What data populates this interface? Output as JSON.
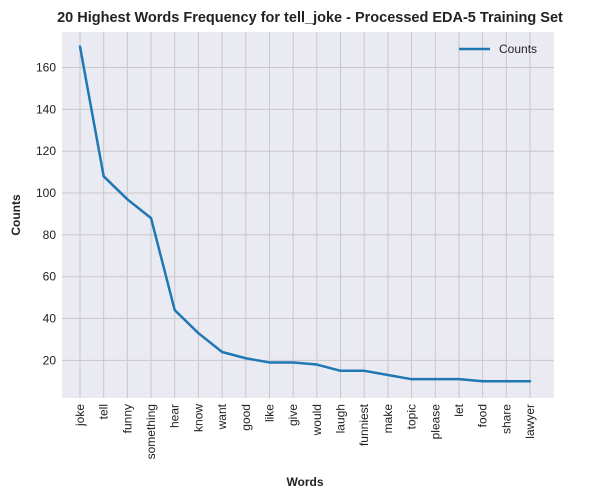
{
  "chart_data": {
    "type": "line",
    "title": "20 Highest Words Frequency for tell_joke - Processed EDA-5 Training Set",
    "xlabel": "Words",
    "ylabel": "Counts",
    "categories": [
      "joke",
      "tell",
      "funny",
      "something",
      "hear",
      "know",
      "want",
      "good",
      "like",
      "give",
      "would",
      "laugh",
      "funniest",
      "make",
      "topic",
      "please",
      "let",
      "food",
      "share",
      "lawyer"
    ],
    "series": [
      {
        "name": "Counts",
        "color": "#1f77b4",
        "values": [
          170,
          108,
          97,
          88,
          44,
          33,
          24,
          21,
          19,
          19,
          18,
          15,
          15,
          13,
          11,
          11,
          11,
          10,
          10,
          10
        ]
      }
    ],
    "ylim": [
      2,
      177
    ],
    "yticks": [
      20,
      40,
      60,
      80,
      100,
      120,
      140,
      160
    ],
    "grid": true,
    "legend_position": "top-right",
    "background": "#eaeaf2",
    "grid_color": "#c8c8c8"
  }
}
